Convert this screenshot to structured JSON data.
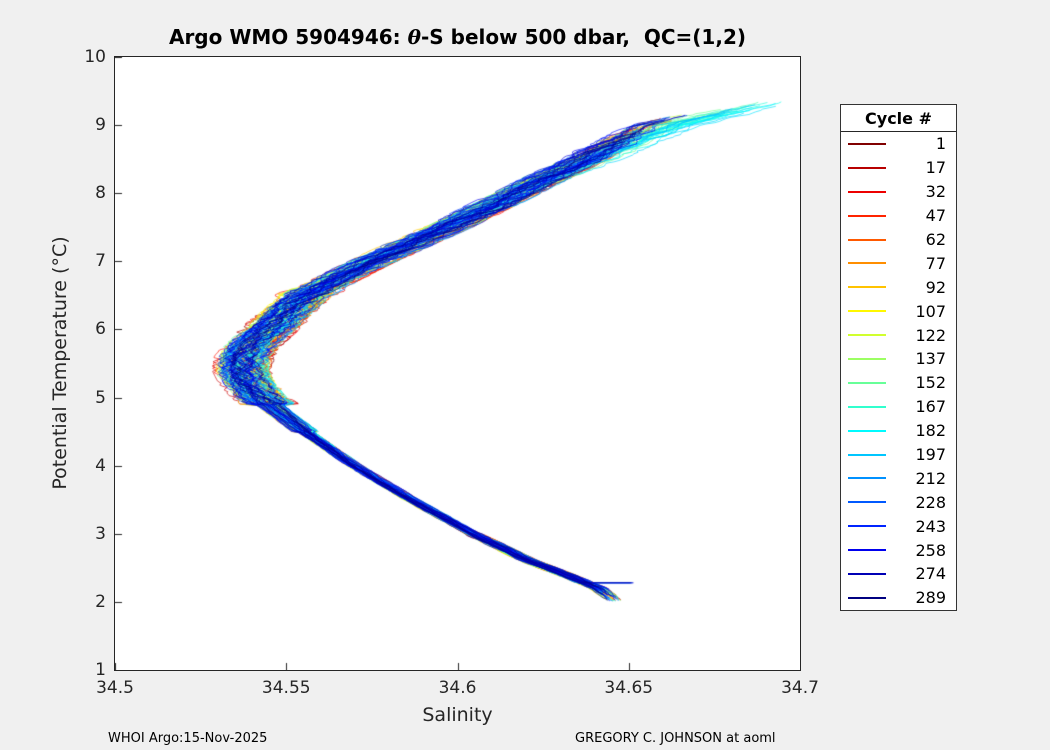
{
  "figure": {
    "background": "#f0f0f0",
    "title": {
      "prefix": "Argo WMO 5904946: ",
      "theta": "θ",
      "suffix": "-S below 500 dbar,  QC=(1,2)"
    },
    "footer_left": "WHOI Argo:15-Nov-2025",
    "footer_right": "GREGORY C. JOHNSON at aoml"
  },
  "chart_data": {
    "type": "line",
    "title": "Argo WMO 5904946: θ-S below 500 dbar, QC=(1,2)",
    "xlabel": "Salinity",
    "ylabel": "Potential Temperature (°C)",
    "xlim": [
      34.5,
      34.7
    ],
    "ylim": [
      1,
      10
    ],
    "xticks": [
      34.5,
      34.55,
      34.6,
      34.65,
      34.7
    ],
    "xtick_labels": [
      "34.5",
      "34.55",
      "34.6",
      "34.65",
      "34.7"
    ],
    "yticks": [
      1,
      2,
      3,
      4,
      5,
      6,
      7,
      8,
      9,
      10
    ],
    "ytick_labels": [
      "1",
      "2",
      "3",
      "4",
      "5",
      "6",
      "7",
      "8",
      "9",
      "10"
    ],
    "grid": false,
    "colormap": "jet-reversed",
    "cycle_range": [
      1,
      289
    ],
    "legend": {
      "title": "Cycle #",
      "position": "right",
      "entries": [
        {
          "label": "1",
          "color": "#800000"
        },
        {
          "label": "17",
          "color": "#B80000"
        },
        {
          "label": "32",
          "color": "#ED0000"
        },
        {
          "label": "47",
          "color": "#FF2400"
        },
        {
          "label": "62",
          "color": "#FF5900"
        },
        {
          "label": "77",
          "color": "#FF8E00"
        },
        {
          "label": "92",
          "color": "#FFC300"
        },
        {
          "label": "107",
          "color": "#FFF800"
        },
        {
          "label": "122",
          "color": "#D1FF2E"
        },
        {
          "label": "137",
          "color": "#9CFF63"
        },
        {
          "label": "152",
          "color": "#67FF98"
        },
        {
          "label": "167",
          "color": "#31FFCE"
        },
        {
          "label": "182",
          "color": "#00FBFF"
        },
        {
          "label": "197",
          "color": "#00C6FF"
        },
        {
          "label": "212",
          "color": "#0091FF"
        },
        {
          "label": "228",
          "color": "#0059FF"
        },
        {
          "label": "243",
          "color": "#0024FF"
        },
        {
          "label": "258",
          "color": "#0000EE"
        },
        {
          "label": "274",
          "color": "#0000B5"
        },
        {
          "label": "289",
          "color": "#000080"
        }
      ]
    },
    "base_curve": {
      "theta": [
        9.35,
        9.0,
        8.5,
        8.0,
        7.5,
        7.0,
        6.5,
        6.2,
        6.0,
        5.8,
        5.6,
        5.4,
        5.2,
        5.0,
        4.8,
        4.5,
        4.0,
        3.5,
        3.0,
        2.6,
        2.4,
        2.2,
        2.0
      ],
      "salinity": [
        34.68,
        34.655,
        34.637,
        34.617,
        34.597,
        34.575,
        34.5555,
        34.549,
        34.545,
        34.5405,
        34.5375,
        34.537,
        34.539,
        34.5425,
        34.5475,
        34.5555,
        34.57,
        34.5865,
        34.6045,
        34.621,
        34.6315,
        34.641,
        34.6465
      ]
    },
    "salinity_min": 34.533,
    "theta_at_salinity_min": 5.4,
    "render": {
      "n_curves": 150,
      "line_width": 0.75,
      "alpha": 0.88,
      "seed": 7
    }
  }
}
